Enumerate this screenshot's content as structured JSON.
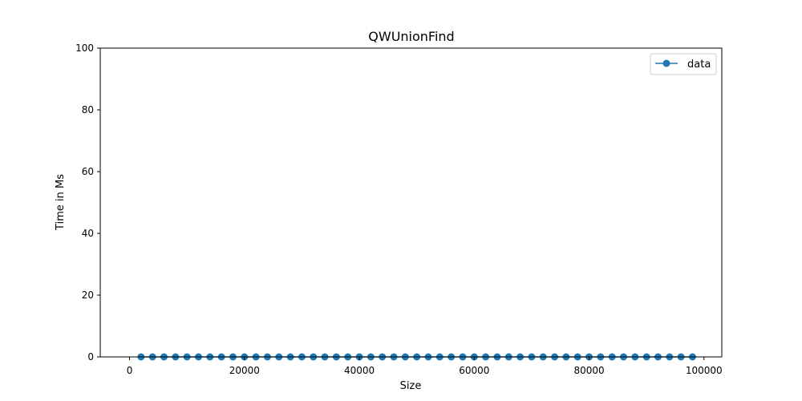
{
  "chart_data": {
    "type": "line",
    "title": "QWUnionFind",
    "xlabel": "Size",
    "ylabel": "Time in Ms",
    "xlim": [
      -5100,
      103100
    ],
    "ylim": [
      0,
      100
    ],
    "xticks": [
      0,
      20000,
      40000,
      60000,
      80000,
      100000
    ],
    "yticks": [
      0,
      20,
      40,
      60,
      80,
      100
    ],
    "grid": false,
    "legend_position": "top-right",
    "series": [
      {
        "name": "data",
        "color": "#1f77b4",
        "marker": "circle",
        "x": [
          2000,
          4000,
          6000,
          8000,
          10000,
          12000,
          14000,
          16000,
          18000,
          20000,
          22000,
          24000,
          26000,
          28000,
          30000,
          32000,
          34000,
          36000,
          38000,
          40000,
          42000,
          44000,
          46000,
          48000,
          50000,
          52000,
          54000,
          56000,
          58000,
          60000,
          62000,
          64000,
          66000,
          68000,
          70000,
          72000,
          74000,
          76000,
          78000,
          80000,
          82000,
          84000,
          86000,
          88000,
          90000,
          92000,
          94000,
          96000,
          98000
        ],
        "y": [
          0,
          0,
          0,
          0,
          0,
          0,
          0,
          0,
          0,
          0,
          0,
          0,
          0,
          0,
          0,
          0,
          0,
          0,
          0,
          0,
          0,
          0,
          0,
          0,
          0,
          0,
          0,
          0,
          0,
          0,
          0,
          0,
          0,
          0,
          0,
          0,
          0,
          0,
          0,
          0,
          0,
          0,
          0,
          0,
          0,
          0,
          0,
          0,
          0
        ]
      }
    ]
  }
}
